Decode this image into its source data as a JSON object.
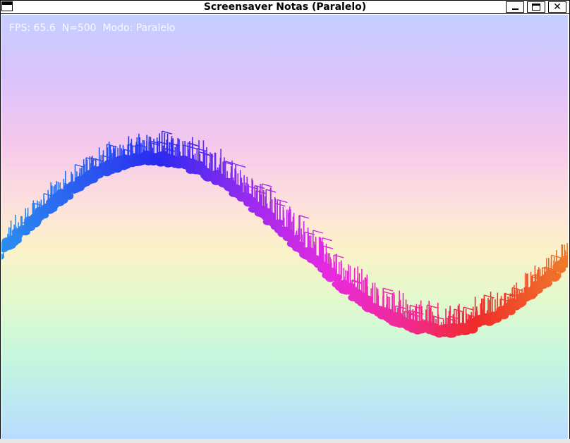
{
  "window": {
    "title": "Screensaver Notas (Paralelo)",
    "buttons": {
      "minimize_glyph": "_",
      "maximize_glyph": "□",
      "close_glyph": "✕"
    },
    "icons": [
      "window-menu-icon",
      "minimize-icon",
      "maximize-icon",
      "close-icon"
    ]
  },
  "hud": {
    "text": "FPS: 65.6  N=500  Modo: Paralelo",
    "color": "#ffffff"
  },
  "scene": {
    "notes_count": 500,
    "colors": {
      "start": "#2a90f0",
      "blue": "#2a2af0",
      "purple": "#9a2af0",
      "magenta": "#e82ae0",
      "pink": "#f02a90",
      "red": "#f02a2a",
      "orange": "#f07a2a"
    }
  }
}
